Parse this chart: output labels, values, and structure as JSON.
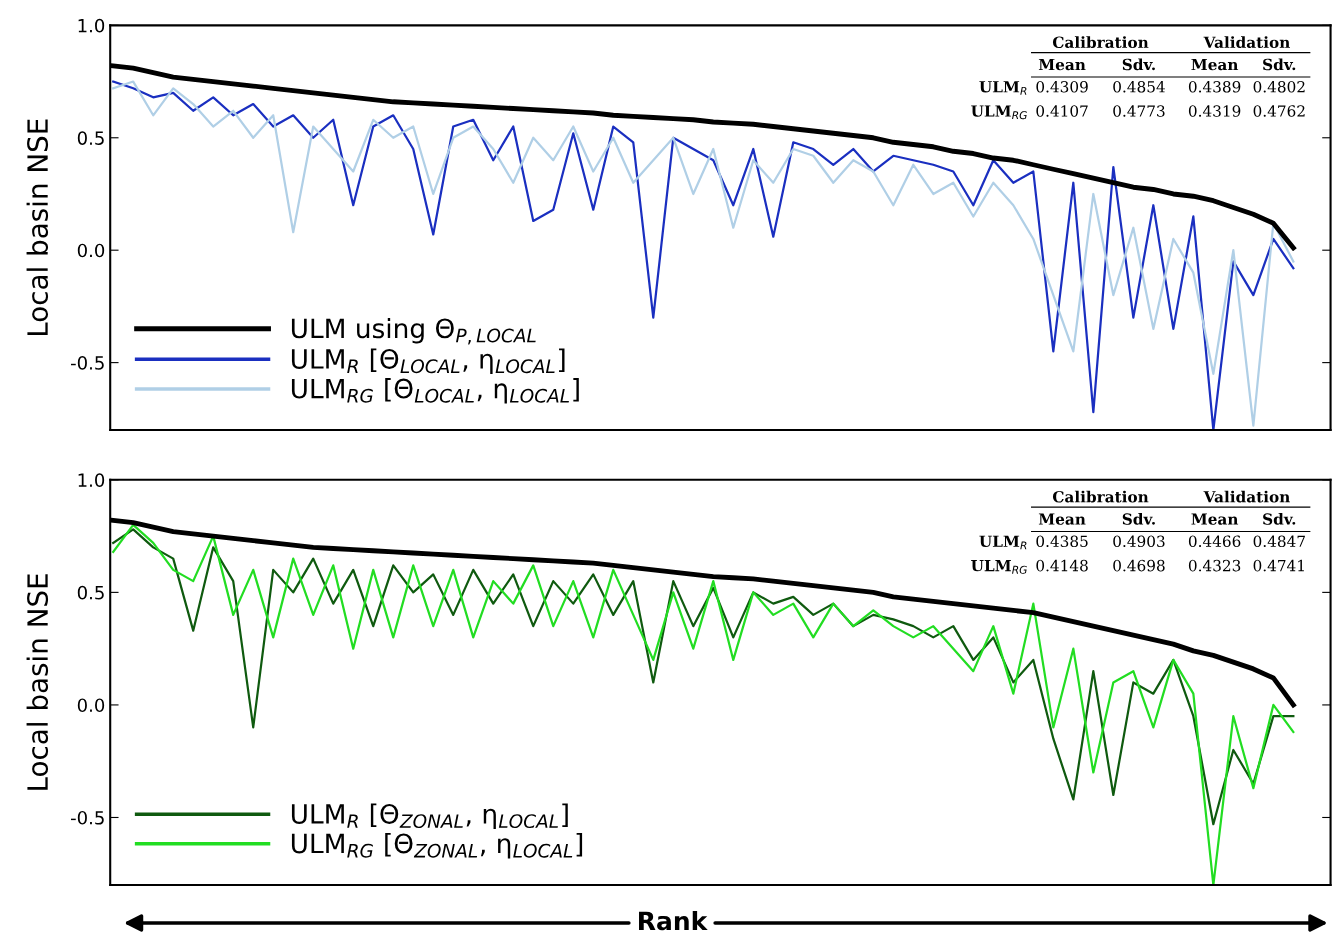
{
  "chart_data": [
    {
      "type": "line",
      "ylabel": "Local basin NSE",
      "ylim": [
        -0.8,
        1.0
      ],
      "yticks": [
        {
          "value": 1.0,
          "label": "1.0"
        },
        {
          "value": 0.5,
          "label": "0.5"
        },
        {
          "value": 0.0,
          "label": "0.0"
        },
        {
          "value": -0.5,
          "label": "-0.5"
        }
      ],
      "tick_labels": "y",
      "grid": false,
      "legend": "bottom left",
      "marker": "none",
      "line_style": "solid",
      "categories": [
        null,
        null,
        null,
        null,
        null,
        null,
        null,
        null,
        null,
        null,
        null,
        null,
        null,
        null,
        null,
        null,
        null,
        null,
        null,
        null,
        null,
        null,
        null,
        null,
        null,
        null,
        null,
        null,
        null,
        null,
        null,
        null,
        null,
        null,
        null,
        null,
        null,
        null,
        null,
        null,
        null,
        null,
        null,
        null,
        null,
        null,
        null,
        null,
        null,
        null,
        null,
        null,
        null,
        null,
        null,
        null,
        null,
        null,
        null,
        null
      ],
      "annotations": [
        "Calibration",
        "Validation",
        "Mean",
        "Sdv.",
        "Mean",
        "Sdv.",
        "ULM$_{R}$",
        "0.4309",
        "0.4854",
        "0.4389",
        "0.4802",
        "ULM$_{RG}$",
        "0.4107",
        "0.4773",
        "0.4319",
        "0.4762"
      ],
      "series": [
        {
          "name": "ULM$_{R}$ [Θ$_{LOCAL}$, η$_{LOCAL}$]",
          "color": "#1a2fc0",
          "values": [
            0.75,
            0.72,
            0.68,
            0.7,
            0.62,
            0.68,
            0.6,
            0.65,
            0.55,
            0.6,
            0.5,
            0.58,
            0.2,
            0.55,
            0.6,
            0.45,
            0.07,
            0.55,
            0.58,
            0.4,
            0.55,
            0.13,
            0.18,
            0.52,
            0.18,
            0.55,
            0.48,
            -0.3,
            0.5,
            0.45,
            0.4,
            0.2,
            0.45,
            0.06,
            0.48,
            0.45,
            0.38,
            0.45,
            0.35,
            0.42,
            0.4,
            0.38,
            0.35,
            0.2,
            0.4,
            0.3,
            0.35,
            -0.45,
            0.3,
            -0.72,
            0.37,
            -0.3,
            0.2,
            -0.35,
            0.15,
            -0.8,
            -0.05,
            -0.2,
            0.05,
            -0.08
          ]
        },
        {
          "name": "ULM$_{RG}$ [Θ$_{LOCAL}$, η$_{LOCAL}$]",
          "color": "#b0cfe6",
          "values": [
            0.72,
            0.75,
            0.6,
            0.72,
            0.65,
            0.55,
            0.62,
            0.5,
            0.6,
            0.08,
            0.55,
            0.45,
            0.35,
            0.58,
            0.5,
            0.55,
            0.25,
            0.5,
            0.55,
            0.45,
            0.3,
            0.5,
            0.4,
            0.55,
            0.35,
            0.5,
            0.3,
            0.4,
            0.5,
            0.25,
            0.45,
            0.1,
            0.4,
            0.3,
            0.45,
            0.42,
            0.3,
            0.4,
            0.35,
            0.2,
            0.38,
            0.25,
            0.3,
            0.15,
            0.3,
            0.2,
            0.05,
            -0.2,
            -0.45,
            0.25,
            -0.2,
            0.1,
            -0.35,
            0.05,
            -0.1,
            -0.55,
            0.0,
            -0.78,
            0.12,
            -0.05
          ]
        },
        {
          "name": "ULM using Θ$_{P,LOCAL}$",
          "color": "#000000",
          "values": [
            0.82,
            0.81,
            0.79,
            0.77,
            0.76,
            0.75,
            0.74,
            0.73,
            0.72,
            0.71,
            0.7,
            0.69,
            0.68,
            0.67,
            0.66,
            0.655,
            0.65,
            0.645,
            0.64,
            0.635,
            0.63,
            0.625,
            0.62,
            0.615,
            0.61,
            0.6,
            0.595,
            0.59,
            0.585,
            0.58,
            0.57,
            0.565,
            0.56,
            0.55,
            0.54,
            0.53,
            0.52,
            0.51,
            0.5,
            0.48,
            0.47,
            0.46,
            0.44,
            0.43,
            0.41,
            0.4,
            0.38,
            0.36,
            0.34,
            0.32,
            0.3,
            0.28,
            0.27,
            0.25,
            0.24,
            0.22,
            0.19,
            0.16,
            0.12,
            0.01
          ]
        }
      ]
    },
    {
      "type": "line",
      "ylabel": "Local basin NSE",
      "xlabel": "Rank",
      "ylim": [
        -0.8,
        1.0
      ],
      "yticks": [
        {
          "value": 1.0,
          "label": "1.0"
        },
        {
          "value": 0.5,
          "label": "0.5"
        },
        {
          "value": 0.0,
          "label": "0.0"
        },
        {
          "value": -0.5,
          "label": "-0.5"
        }
      ],
      "tick_labels": "y",
      "grid": false,
      "legend": "bottom left",
      "marker": "none",
      "line_style": "solid",
      "categories": [
        null,
        null,
        null,
        null,
        null,
        null,
        null,
        null,
        null,
        null,
        null,
        null,
        null,
        null,
        null,
        null,
        null,
        null,
        null,
        null,
        null,
        null,
        null,
        null,
        null,
        null,
        null,
        null,
        null,
        null,
        null,
        null,
        null,
        null,
        null,
        null,
        null,
        null,
        null,
        null,
        null,
        null,
        null,
        null,
        null,
        null,
        null,
        null,
        null,
        null,
        null,
        null,
        null,
        null,
        null,
        null,
        null,
        null,
        null,
        null
      ],
      "annotations": [
        "Calibration",
        "Validation",
        "Mean",
        "Sdv.",
        "Mean",
        "Sdv.",
        "ULM$_{R}$",
        "0.4385",
        "0.4903",
        "0.4466",
        "0.4847",
        "ULM$_{RG}$",
        "0.4148",
        "0.4698",
        "0.4323",
        "0.4741"
      ],
      "series": [
        {
          "name": "ULM$_{R}$ [Θ$_{ZONAL}$, η$_{LOCAL}$]",
          "color": "#0f5a0f",
          "values": [
            0.72,
            0.78,
            0.7,
            0.65,
            0.33,
            0.7,
            0.55,
            -0.1,
            0.6,
            0.5,
            0.65,
            0.45,
            0.6,
            0.35,
            0.62,
            0.5,
            0.58,
            0.4,
            0.6,
            0.45,
            0.58,
            0.35,
            0.55,
            0.45,
            0.58,
            0.4,
            0.55,
            0.1,
            0.55,
            0.35,
            0.52,
            0.3,
            0.5,
            0.45,
            0.48,
            0.4,
            0.45,
            0.35,
            0.4,
            0.38,
            0.35,
            0.3,
            0.35,
            0.2,
            0.3,
            0.1,
            0.2,
            -0.15,
            -0.42,
            0.15,
            -0.4,
            0.1,
            0.05,
            0.2,
            -0.05,
            -0.53,
            -0.2,
            -0.35,
            -0.05,
            -0.05
          ]
        },
        {
          "name": "ULM$_{RG}$ [Θ$_{ZONAL}$, η$_{LOCAL}$]",
          "color": "#22dd22",
          "values": [
            0.68,
            0.8,
            0.72,
            0.6,
            0.55,
            0.75,
            0.4,
            0.6,
            0.3,
            0.65,
            0.4,
            0.62,
            0.25,
            0.6,
            0.3,
            0.62,
            0.35,
            0.6,
            0.3,
            0.55,
            0.45,
            0.62,
            0.35,
            0.55,
            0.3,
            0.6,
            0.4,
            0.2,
            0.5,
            0.25,
            0.55,
            0.2,
            0.5,
            0.4,
            0.45,
            0.3,
            0.45,
            0.35,
            0.42,
            0.35,
            0.3,
            0.35,
            0.25,
            0.15,
            0.35,
            0.05,
            0.45,
            -0.1,
            0.25,
            -0.3,
            0.1,
            0.15,
            -0.1,
            0.2,
            0.05,
            -0.8,
            -0.05,
            -0.37,
            0.0,
            -0.12
          ]
        },
        {
          "color": "#000000",
          "values": [
            0.82,
            0.81,
            0.79,
            0.77,
            0.76,
            0.75,
            0.74,
            0.73,
            0.72,
            0.71,
            0.7,
            0.695,
            0.69,
            0.685,
            0.68,
            0.675,
            0.67,
            0.665,
            0.66,
            0.655,
            0.65,
            0.645,
            0.64,
            0.635,
            0.63,
            0.62,
            0.61,
            0.6,
            0.59,
            0.58,
            0.57,
            0.565,
            0.56,
            0.55,
            0.54,
            0.53,
            0.52,
            0.51,
            0.5,
            0.48,
            0.47,
            0.46,
            0.45,
            0.44,
            0.43,
            0.42,
            0.41,
            0.39,
            0.37,
            0.35,
            0.33,
            0.31,
            0.29,
            0.27,
            0.24,
            0.22,
            0.19,
            0.16,
            0.12,
            0.0
          ]
        }
      ]
    }
  ]
}
